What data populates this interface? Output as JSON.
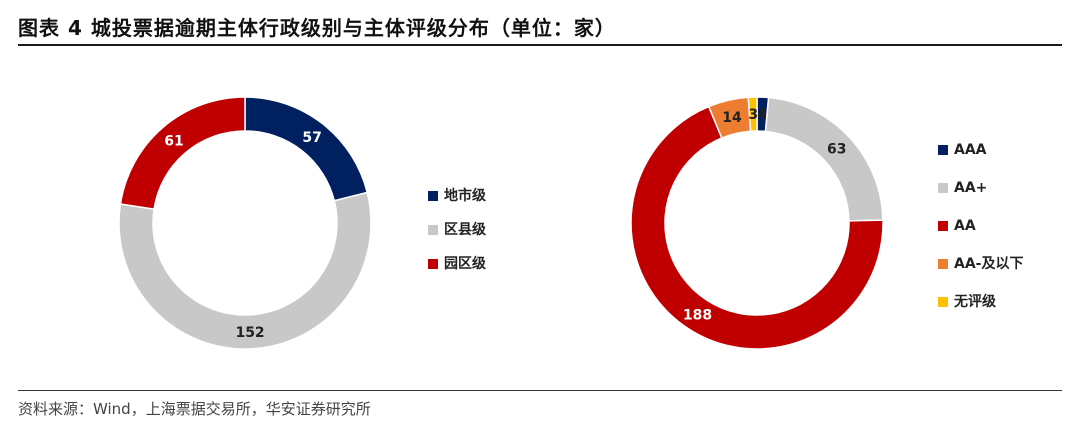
{
  "title": "图表 4  城投票据逾期主体行政级别与主体评级分布（单位：家）",
  "source": "资料来源：Wind，上海票据交易所，华安证券研究所",
  "chart_data": [
    {
      "type": "pie",
      "donut": true,
      "legend_position": "right",
      "categories": [
        "地市级",
        "区县级",
        "园区级"
      ],
      "values": [
        57,
        152,
        61
      ],
      "colors": [
        "#002060",
        "#C8C8C8",
        "#C00000"
      ],
      "label_colors": [
        "#ffffff",
        "#222222",
        "#ffffff"
      ]
    },
    {
      "type": "pie",
      "donut": true,
      "legend_position": "right",
      "categories": [
        "AAA",
        "AA+",
        "AA",
        "AA-及以下",
        "无评级"
      ],
      "values": [
        4,
        63,
        188,
        14,
        3
      ],
      "colors": [
        "#002060",
        "#C8C8C8",
        "#C00000",
        "#ED7D31",
        "#FFC000"
      ],
      "label_colors": [
        "#222222",
        "#222222",
        "#ffffff",
        "#222222",
        "#222222"
      ]
    }
  ]
}
